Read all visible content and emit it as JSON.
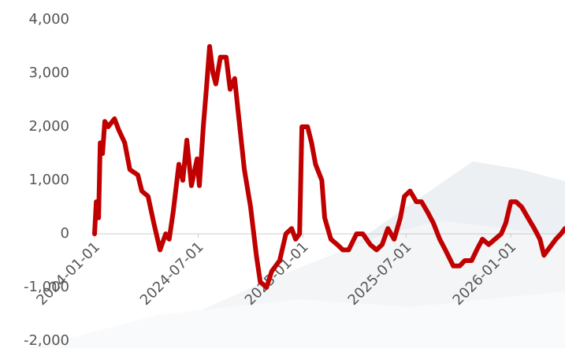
{
  "chart_data": {
    "type": "line",
    "color": "#c00000",
    "x": [
      "2024-01-01",
      "2024-01-04",
      "2024-01-08",
      "2024-01-11",
      "2024-01-15",
      "2024-01-19",
      "2024-01-25",
      "2024-02-05",
      "2024-02-12",
      "2024-02-23",
      "2024-03-03",
      "2024-03-17",
      "2024-03-24",
      "2024-04-04",
      "2024-04-14",
      "2024-04-25",
      "2024-05-05",
      "2024-05-11",
      "2024-05-18",
      "2024-05-28",
      "2024-06-04",
      "2024-06-11",
      "2024-06-19",
      "2024-06-29",
      "2024-07-03",
      "2024-07-10",
      "2024-07-16",
      "2024-07-21",
      "2024-07-27",
      "2024-08-01",
      "2024-08-09",
      "2024-08-19",
      "2024-08-26",
      "2024-09-03",
      "2024-09-09",
      "2024-09-20",
      "2024-10-01",
      "2024-10-11",
      "2024-10-18",
      "2024-10-29",
      "2024-11-07",
      "2024-11-21",
      "2024-12-02",
      "2024-12-12",
      "2024-12-19",
      "2024-12-26",
      "2024-12-30",
      "2025-01-09",
      "2025-01-16",
      "2025-01-23",
      "2025-02-03",
      "2025-02-08",
      "2025-02-19",
      "2025-03-02",
      "2025-03-12",
      "2025-03-22",
      "2025-04-05",
      "2025-04-16",
      "2025-04-29",
      "2025-05-10",
      "2025-05-20",
      "2025-05-30",
      "2025-06-10",
      "2025-06-21",
      "2025-06-28",
      "2025-07-08",
      "2025-07-19",
      "2025-07-28",
      "2025-08-08",
      "2025-08-18",
      "2025-08-29",
      "2025-09-08",
      "2025-09-22",
      "2025-10-03",
      "2025-10-12",
      "2025-10-24",
      "2025-11-02",
      "2025-11-12",
      "2025-11-23",
      "2025-12-04",
      "2025-12-15",
      "2025-12-23",
      "2026-01-01",
      "2026-01-10",
      "2026-01-20",
      "2026-01-31",
      "2026-02-11",
      "2026-02-21",
      "2026-02-28",
      "2026-03-07",
      "2026-03-21",
      "2026-03-30",
      "2026-04-06"
    ],
    "values": [
      0,
      600,
      300,
      1700,
      1500,
      2100,
      2000,
      2150,
      1950,
      1700,
      1200,
      1100,
      800,
      700,
      200,
      -300,
      0,
      -100,
      400,
      1300,
      1000,
      1750,
      900,
      1400,
      900,
      2000,
      2800,
      3500,
      3000,
      2800,
      3300,
      3300,
      2700,
      2900,
      2300,
      1200,
      500,
      -400,
      -900,
      -1000,
      -700,
      -500,
      0,
      100,
      -100,
      0,
      2000,
      2000,
      1700,
      1300,
      1000,
      300,
      -100,
      -200,
      -300,
      -300,
      0,
      0,
      -200,
      -300,
      -200,
      100,
      -100,
      300,
      700,
      800,
      600,
      600,
      400,
      200,
      -100,
      -300,
      -600,
      -600,
      -500,
      -500,
      -300,
      -100,
      -200,
      -100,
      0,
      200,
      600,
      600,
      500,
      300,
      100,
      -100,
      -400,
      -300,
      -100,
      0,
      100
    ],
    "xlim": [
      "2024-01-01",
      "2026-04-06"
    ],
    "xticks": [
      "2024-01-01",
      "2024-07-01",
      "2025-01-01",
      "2025-07-01",
      "2026-01-01"
    ],
    "ylim": [
      -2000,
      4000
    ],
    "yticks": [
      {
        "value": -2000,
        "label": "-2,000"
      },
      {
        "value": -1000,
        "label": "-1,000"
      },
      0,
      {
        "value": 1000,
        "label": "1,000"
      },
      {
        "value": 2000,
        "label": "2,000"
      },
      {
        "value": 3000,
        "label": "3,000"
      },
      {
        "value": 4000,
        "label": "4,000"
      }
    ]
  }
}
